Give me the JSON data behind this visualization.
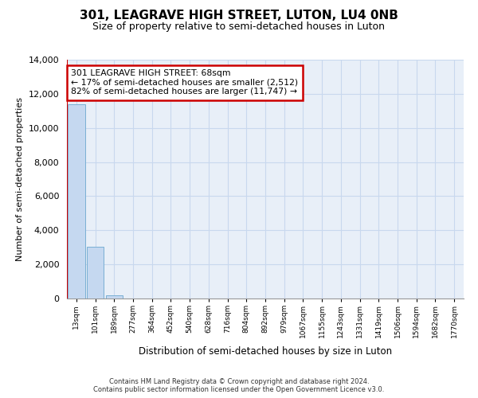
{
  "title1": "301, LEAGRAVE HIGH STREET, LUTON, LU4 0NB",
  "title2": "Size of property relative to semi-detached houses in Luton",
  "xlabel": "Distribution of semi-detached houses by size in Luton",
  "ylabel": "Number of semi-detached properties",
  "categories": [
    "13sqm",
    "101sqm",
    "189sqm",
    "277sqm",
    "364sqm",
    "452sqm",
    "540sqm",
    "628sqm",
    "716sqm",
    "804sqm",
    "892sqm",
    "979sqm",
    "1067sqm",
    "1155sqm",
    "1243sqm",
    "1331sqm",
    "1419sqm",
    "1506sqm",
    "1594sqm",
    "1682sqm",
    "1770sqm"
  ],
  "bar_values": [
    11400,
    3050,
    190,
    0,
    0,
    0,
    0,
    0,
    0,
    0,
    0,
    0,
    0,
    0,
    0,
    0,
    0,
    0,
    0,
    0,
    0
  ],
  "bar_color": "#c5d8f0",
  "bar_edge_color": "#7aafd4",
  "ylim": [
    0,
    14000
  ],
  "yticks": [
    0,
    2000,
    4000,
    6000,
    8000,
    10000,
    12000,
    14000
  ],
  "red_line_x": -0.5,
  "subject_line_color": "#cc0000",
  "annotation_line1": "301 LEAGRAVE HIGH STREET: 68sqm",
  "annotation_line2": "← 17% of semi-detached houses are smaller (2,512)",
  "annotation_line3": "82% of semi-detached houses are larger (11,747) →",
  "annotation_box_edgecolor": "#cc0000",
  "grid_color": "#c8d8ee",
  "background_color": "#e8eff8",
  "footer_line1": "Contains HM Land Registry data © Crown copyright and database right 2024.",
  "footer_line2": "Contains public sector information licensed under the Open Government Licence v3.0."
}
